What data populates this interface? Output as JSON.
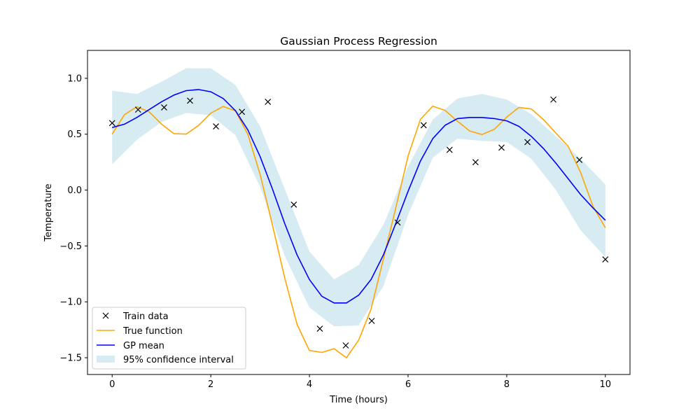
{
  "chart_data": {
    "type": "line",
    "title": "Gaussian Process Regression",
    "xlabel": "Time (hours)",
    "ylabel": "Temperature",
    "xlim": [
      -0.5,
      10.5
    ],
    "ylim": [
      -1.65,
      1.25
    ],
    "xticks": [
      0,
      2,
      4,
      6,
      8,
      10
    ],
    "xtick_labels": [
      "0",
      "2",
      "4",
      "6",
      "8",
      "10"
    ],
    "yticks": [
      -1.5,
      -1.0,
      -0.5,
      0.0,
      0.5,
      1.0
    ],
    "ytick_labels": [
      "−1.5",
      "−1.0",
      "−0.5",
      "0.0",
      "0.5",
      "1.0"
    ],
    "grid": false,
    "legend_position": "lower-left",
    "series": [
      {
        "name": "Train data",
        "kind": "scatter",
        "marker": "x",
        "color": "#000000",
        "x": [
          0.0,
          0.526,
          1.053,
          1.579,
          2.105,
          2.632,
          3.158,
          3.684,
          4.211,
          4.737,
          5.263,
          5.789,
          6.316,
          6.842,
          7.368,
          7.895,
          8.421,
          8.947,
          9.474,
          10.0
        ],
        "y": [
          0.6,
          0.72,
          0.74,
          0.8,
          0.57,
          0.7,
          0.79,
          -0.13,
          -1.24,
          -1.39,
          -1.17,
          -0.29,
          0.58,
          0.36,
          0.25,
          0.38,
          0.43,
          0.81,
          0.27,
          -0.62
        ]
      },
      {
        "name": "True function",
        "kind": "line",
        "color": "#ffa500",
        "x": [
          0.0,
          0.25,
          0.5,
          0.75,
          1.0,
          1.25,
          1.5,
          1.75,
          2.0,
          2.25,
          2.5,
          2.75,
          3.0,
          3.25,
          3.5,
          3.75,
          4.0,
          4.25,
          4.5,
          4.75,
          5.0,
          5.25,
          5.5,
          5.75,
          6.0,
          6.25,
          6.5,
          6.75,
          7.0,
          7.25,
          7.5,
          7.75,
          8.0,
          8.25,
          8.5,
          8.75,
          9.0,
          9.25,
          9.5,
          9.75,
          10.0
        ],
        "y": [
          0.5,
          0.675,
          0.745,
          0.7,
          0.591,
          0.505,
          0.501,
          0.578,
          0.688,
          0.748,
          0.709,
          0.5,
          0.141,
          -0.313,
          -0.787,
          -1.202,
          -1.435,
          -1.453,
          -1.419,
          -1.5,
          -1.342,
          -1.063,
          -0.618,
          -0.161,
          0.306,
          0.633,
          0.751,
          0.714,
          0.617,
          0.529,
          0.497,
          0.545,
          0.654,
          0.74,
          0.726,
          0.629,
          0.509,
          0.39,
          0.157,
          -0.147,
          -0.337
        ]
      },
      {
        "name": "GP mean",
        "kind": "line",
        "color": "#0000ff",
        "x": [
          0.0,
          0.25,
          0.5,
          0.75,
          1.0,
          1.25,
          1.5,
          1.75,
          2.0,
          2.25,
          2.5,
          2.75,
          3.0,
          3.25,
          3.5,
          3.75,
          4.0,
          4.25,
          4.5,
          4.75,
          5.0,
          5.25,
          5.5,
          5.75,
          6.0,
          6.25,
          6.5,
          6.75,
          7.0,
          7.25,
          7.5,
          7.75,
          8.0,
          8.25,
          8.5,
          8.75,
          9.0,
          9.25,
          9.5,
          9.75,
          10.0
        ],
        "y": [
          0.56,
          0.59,
          0.65,
          0.72,
          0.79,
          0.85,
          0.89,
          0.9,
          0.88,
          0.82,
          0.71,
          0.54,
          0.3,
          0.01,
          -0.3,
          -0.58,
          -0.8,
          -0.95,
          -1.01,
          -1.01,
          -0.94,
          -0.8,
          -0.58,
          -0.3,
          -0.01,
          0.26,
          0.46,
          0.58,
          0.64,
          0.65,
          0.65,
          0.64,
          0.62,
          0.57,
          0.48,
          0.37,
          0.24,
          0.1,
          -0.04,
          -0.16,
          -0.27
        ]
      },
      {
        "name": "95% confidence interval",
        "kind": "band",
        "color": "#add8e6",
        "alpha": 0.5,
        "x": [
          0.0,
          0.5,
          1.0,
          1.5,
          2.0,
          2.5,
          3.0,
          3.5,
          4.0,
          4.5,
          5.0,
          5.5,
          6.0,
          6.5,
          7.0,
          7.5,
          8.0,
          8.5,
          9.0,
          9.5,
          10.0
        ],
        "upper": [
          0.89,
          0.86,
          0.97,
          1.09,
          1.09,
          0.94,
          0.57,
          0.01,
          -0.55,
          -0.8,
          -0.67,
          -0.31,
          0.21,
          0.63,
          0.82,
          0.86,
          0.81,
          0.68,
          0.48,
          0.28,
          0.05
        ],
        "lower": [
          0.23,
          0.45,
          0.61,
          0.69,
          0.67,
          0.49,
          0.03,
          -0.59,
          -1.05,
          -1.22,
          -1.21,
          -0.86,
          -0.22,
          0.29,
          0.46,
          0.44,
          0.43,
          0.28,
          0.0,
          -0.36,
          -0.6
        ]
      }
    ]
  }
}
